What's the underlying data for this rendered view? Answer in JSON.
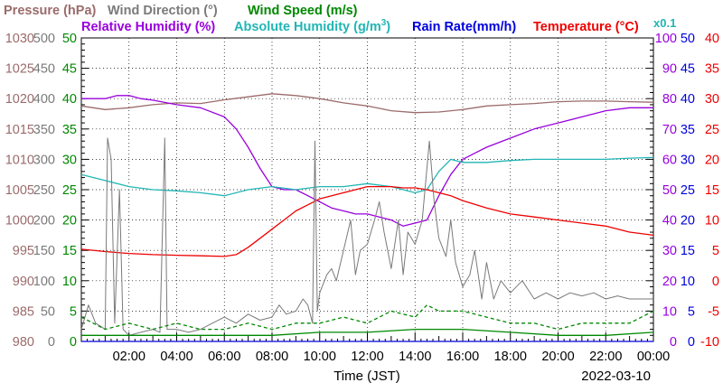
{
  "chart_data": {
    "type": "line",
    "date": "2022-03-10",
    "xlabel": "Time (JST)",
    "x_ticks": [
      "02:00",
      "04:00",
      "06:00",
      "08:00",
      "10:00",
      "12:00",
      "14:00",
      "16:00",
      "18:00",
      "20:00",
      "22:00",
      "00:00"
    ],
    "x_range_hours": [
      0,
      24
    ],
    "grid": true,
    "axes": {
      "pressure": {
        "label": "Pressure (hPa)",
        "range": [
          980,
          1030
        ],
        "ticks": [
          "1030",
          "1025",
          "1020",
          "1015",
          "1010",
          "1005",
          "1000",
          "995",
          "990",
          "985",
          "980"
        ],
        "color": "#9b6b6b"
      },
      "wind_direction": {
        "label": "Wind Direction (°)",
        "range": [
          0,
          500
        ],
        "ticks": [
          "500",
          "450",
          "400",
          "350",
          "300",
          "250",
          "200",
          "150",
          "100",
          "50",
          "0"
        ],
        "color": "#7a7a7a"
      },
      "wind_speed": {
        "label": "Wind Speed (m/s)",
        "range": [
          0,
          50
        ],
        "ticks": [
          "50",
          "45",
          "40",
          "35",
          "30",
          "25",
          "20",
          "15",
          "10",
          "5",
          "0"
        ],
        "color": "#008800"
      },
      "relative_humidity": {
        "label": "Relative Humidity (%)",
        "range": [
          0,
          100
        ],
        "ticks": [
          "100",
          "90",
          "80",
          "70",
          "60",
          "50",
          "40",
          "30",
          "20",
          "10",
          "0"
        ],
        "color": "#9900dd"
      },
      "absolute_humidity": {
        "label": "Absolute Humidity (g/m",
        "label_sup": "3",
        "label_end": ")",
        "multiplier": "x0.1",
        "range": [
          0,
          50
        ],
        "color": "#22b5b5"
      },
      "rain_rate": {
        "label": "Rain Rate(mm/h)",
        "range": [
          0,
          50
        ],
        "ticks": [
          "50",
          "45",
          "40",
          "35",
          "30",
          "25",
          "20",
          "15",
          "10",
          "5",
          "0"
        ],
        "color": "#0000dd"
      },
      "temperature": {
        "label": "Temperature (°C)",
        "range": [
          -10,
          40
        ],
        "ticks": [
          "40",
          "35",
          "30",
          "25",
          "20",
          "15",
          "10",
          "5",
          "0",
          "-5",
          "-10"
        ],
        "color": "#ee0000"
      }
    },
    "series": [
      {
        "name": "Pressure (hPa)",
        "axis": "pressure",
        "color": "#9b6b6b",
        "points": [
          [
            0,
            1018.8
          ],
          [
            1,
            1018.2
          ],
          [
            2,
            1018.5
          ],
          [
            3,
            1019.0
          ],
          [
            4,
            1019.3
          ],
          [
            5,
            1019.2
          ],
          [
            6,
            1019.8
          ],
          [
            7,
            1020.3
          ],
          [
            8,
            1020.8
          ],
          [
            9,
            1020.5
          ],
          [
            10,
            1020.0
          ],
          [
            11,
            1019.3
          ],
          [
            12,
            1018.8
          ],
          [
            13,
            1018.0
          ],
          [
            14,
            1017.7
          ],
          [
            15,
            1017.8
          ],
          [
            16,
            1018.2
          ],
          [
            17,
            1018.8
          ],
          [
            18,
            1019.0
          ],
          [
            19,
            1019.2
          ],
          [
            20,
            1019.5
          ],
          [
            21,
            1019.6
          ],
          [
            22,
            1019.6
          ],
          [
            23,
            1019.5
          ],
          [
            24,
            1019.4
          ]
        ]
      },
      {
        "name": "Relative Humidity (%)",
        "axis": "relative_humidity",
        "color": "#9900dd",
        "points": [
          [
            0,
            80
          ],
          [
            1,
            80
          ],
          [
            1.5,
            81
          ],
          [
            2,
            81
          ],
          [
            2.5,
            80
          ],
          [
            3,
            79.5
          ],
          [
            4,
            78
          ],
          [
            5,
            77
          ],
          [
            6,
            74
          ],
          [
            6.5,
            70
          ],
          [
            7,
            64
          ],
          [
            7.5,
            57
          ],
          [
            8,
            51
          ],
          [
            8.5,
            50
          ],
          [
            9,
            50
          ],
          [
            9.5,
            48
          ],
          [
            10,
            46
          ],
          [
            10.5,
            44
          ],
          [
            11,
            43
          ],
          [
            11.5,
            42
          ],
          [
            12,
            42
          ],
          [
            12.5,
            41
          ],
          [
            13,
            40
          ],
          [
            13.5,
            38
          ],
          [
            14,
            39
          ],
          [
            14.5,
            40
          ],
          [
            15,
            48
          ],
          [
            15.5,
            55
          ],
          [
            16,
            60
          ],
          [
            16.5,
            62
          ],
          [
            17,
            64
          ],
          [
            18,
            67
          ],
          [
            19,
            70
          ],
          [
            20,
            72
          ],
          [
            21,
            74
          ],
          [
            22,
            76
          ],
          [
            23,
            77
          ],
          [
            24,
            77
          ]
        ]
      },
      {
        "name": "Absolute Humidity (g/m3) x0.1",
        "axis": "absolute_humidity",
        "color": "#22b5b5",
        "points": [
          [
            0,
            27.5
          ],
          [
            1,
            26.5
          ],
          [
            2,
            25.5
          ],
          [
            3,
            25
          ],
          [
            4,
            24.8
          ],
          [
            5,
            24.5
          ],
          [
            6,
            24
          ],
          [
            7,
            25
          ],
          [
            8,
            25.5
          ],
          [
            9,
            25
          ],
          [
            10,
            25.5
          ],
          [
            11,
            25.5
          ],
          [
            12,
            26
          ],
          [
            13,
            25.5
          ],
          [
            14,
            24.5
          ],
          [
            14.5,
            25
          ],
          [
            15,
            28
          ],
          [
            15.5,
            30
          ],
          [
            16,
            29.5
          ],
          [
            17,
            29.5
          ],
          [
            18,
            29.8
          ],
          [
            19,
            30
          ],
          [
            20,
            30
          ],
          [
            21,
            30
          ],
          [
            22,
            30
          ],
          [
            23,
            30.2
          ],
          [
            24,
            30.3
          ]
        ]
      },
      {
        "name": "Temperature (°C)",
        "axis": "temperature",
        "color": "#ee0000",
        "points": [
          [
            0,
            5.2
          ],
          [
            1,
            4.8
          ],
          [
            2,
            4.5
          ],
          [
            3,
            4.3
          ],
          [
            4,
            4.2
          ],
          [
            5,
            4.1
          ],
          [
            6,
            4.0
          ],
          [
            6.5,
            4.3
          ],
          [
            7,
            5.5
          ],
          [
            7.5,
            7
          ],
          [
            8,
            8.5
          ],
          [
            8.5,
            10
          ],
          [
            9,
            11.5
          ],
          [
            9.5,
            12.5
          ],
          [
            10,
            13.5
          ],
          [
            10.5,
            14
          ],
          [
            11,
            14.5
          ],
          [
            11.5,
            15
          ],
          [
            12,
            15.5
          ],
          [
            12.5,
            15.5
          ],
          [
            13,
            15.5
          ],
          [
            13.5,
            15.3
          ],
          [
            14,
            15.3
          ],
          [
            14.5,
            15
          ],
          [
            15,
            14.5
          ],
          [
            15.5,
            14
          ],
          [
            16,
            13.2
          ],
          [
            17,
            12
          ],
          [
            18,
            11
          ],
          [
            19,
            10.5
          ],
          [
            20,
            10
          ],
          [
            21,
            9.5
          ],
          [
            22,
            9
          ],
          [
            23,
            8
          ],
          [
            24,
            7.5
          ]
        ]
      },
      {
        "name": "Wind Direction (°)",
        "axis": "wind_direction",
        "color": "#7a7a7a",
        "points": [
          [
            0,
            20
          ],
          [
            0.3,
            60
          ],
          [
            0.6,
            30
          ],
          [
            1,
            20
          ],
          [
            1.1,
            335
          ],
          [
            1.25,
            300
          ],
          [
            1.4,
            30
          ],
          [
            1.6,
            250
          ],
          [
            1.75,
            20
          ],
          [
            2,
            10
          ],
          [
            2.5,
            15
          ],
          [
            3,
            20
          ],
          [
            3.3,
            15
          ],
          [
            3.5,
            335
          ],
          [
            3.6,
            20
          ],
          [
            4,
            20
          ],
          [
            4.5,
            15
          ],
          [
            5,
            20
          ],
          [
            5.5,
            30
          ],
          [
            6,
            40
          ],
          [
            6.5,
            30
          ],
          [
            7,
            45
          ],
          [
            7.5,
            35
          ],
          [
            8,
            40
          ],
          [
            8.3,
            60
          ],
          [
            8.6,
            45
          ],
          [
            9,
            50
          ],
          [
            9.3,
            70
          ],
          [
            9.5,
            60
          ],
          [
            9.7,
            30
          ],
          [
            9.8,
            330
          ],
          [
            9.9,
            50
          ],
          [
            10,
            80
          ],
          [
            10.3,
            110
          ],
          [
            10.5,
            120
          ],
          [
            10.7,
            100
          ],
          [
            11,
            150
          ],
          [
            11.3,
            200
          ],
          [
            11.5,
            110
          ],
          [
            11.7,
            150
          ],
          [
            12,
            160
          ],
          [
            12.3,
            200
          ],
          [
            12.5,
            230
          ],
          [
            12.7,
            180
          ],
          [
            13,
            120
          ],
          [
            13.3,
            200
          ],
          [
            13.5,
            110
          ],
          [
            13.7,
            180
          ],
          [
            14,
            160
          ],
          [
            14.3,
            200
          ],
          [
            14.6,
            330
          ],
          [
            14.8,
            230
          ],
          [
            15,
            170
          ],
          [
            15.3,
            140
          ],
          [
            15.5,
            200
          ],
          [
            15.7,
            130
          ],
          [
            16,
            90
          ],
          [
            16.3,
            110
          ],
          [
            16.5,
            150
          ],
          [
            16.8,
            70
          ],
          [
            17,
            130
          ],
          [
            17.3,
            70
          ],
          [
            17.6,
            100
          ],
          [
            18,
            80
          ],
          [
            18.5,
            100
          ],
          [
            19,
            70
          ],
          [
            19.5,
            80
          ],
          [
            20,
            70
          ],
          [
            20.5,
            80
          ],
          [
            21,
            75
          ],
          [
            21.5,
            80
          ],
          [
            22,
            70
          ],
          [
            22.5,
            75
          ],
          [
            23,
            70
          ],
          [
            24,
            70
          ]
        ]
      },
      {
        "name": "Wind Speed (m/s)",
        "axis": "wind_speed",
        "color": "#008800",
        "dashed": true,
        "points": [
          [
            0,
            4
          ],
          [
            1,
            2
          ],
          [
            2,
            3
          ],
          [
            3,
            2
          ],
          [
            4,
            3
          ],
          [
            5,
            2
          ],
          [
            6,
            2
          ],
          [
            7,
            3
          ],
          [
            8,
            2
          ],
          [
            9,
            3
          ],
          [
            10,
            3
          ],
          [
            11,
            4
          ],
          [
            12,
            3
          ],
          [
            13,
            5
          ],
          [
            14,
            4
          ],
          [
            14.5,
            6
          ],
          [
            15,
            5
          ],
          [
            16,
            5
          ],
          [
            17,
            4
          ],
          [
            18,
            3
          ],
          [
            19,
            3
          ],
          [
            20,
            2
          ],
          [
            21,
            3
          ],
          [
            22,
            3
          ],
          [
            23,
            3
          ],
          [
            24,
            5
          ]
        ]
      },
      {
        "name": "Wind Speed (m/s) average",
        "axis": "wind_speed",
        "color": "#008800",
        "points": [
          [
            0,
            1
          ],
          [
            2,
            1
          ],
          [
            4,
            1
          ],
          [
            6,
            1
          ],
          [
            8,
            1
          ],
          [
            10,
            1.5
          ],
          [
            12,
            1.5
          ],
          [
            14,
            2
          ],
          [
            16,
            2
          ],
          [
            18,
            1.5
          ],
          [
            20,
            1
          ],
          [
            22,
            1
          ],
          [
            24,
            1.5
          ]
        ]
      },
      {
        "name": "Rain Rate(mm/h)",
        "axis": "rain_rate",
        "color": "#0000dd",
        "points": [
          [
            0,
            0
          ],
          [
            24,
            0
          ]
        ]
      }
    ]
  }
}
